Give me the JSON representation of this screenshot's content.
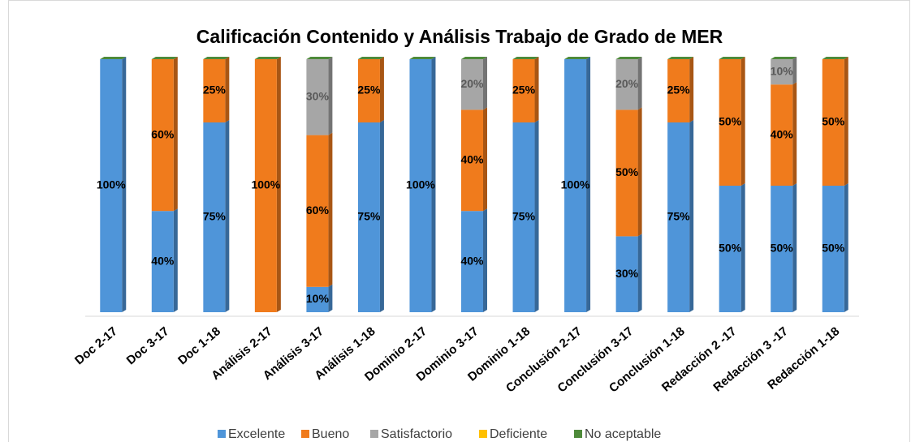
{
  "chart_data": {
    "type": "stacked-bar",
    "title": "Calificación Contenido y Análisis Trabajo de Grado de MER",
    "categories": [
      "Doc 2-17",
      "Doc 3-17",
      "Doc 1-18",
      "Análisis 2-17",
      "Análisis 3-17",
      "Análisis 1-18",
      "Dominio 2-17",
      "Dominio 3-17",
      "Dominio 1-18",
      "Conclusión 2-17",
      "Conclusión 3-17",
      "Conclusión 1-18",
      "Redacción 2 -17",
      "Redacción 3 -17",
      "Redacción 1-18"
    ],
    "series": [
      {
        "name": "Excelente",
        "color": "#4f95d9",
        "values": [
          100,
          40,
          75,
          0,
          10,
          75,
          100,
          40,
          75,
          100,
          30,
          75,
          50,
          50,
          50
        ],
        "value_labels": [
          "100%",
          "40%",
          "75%",
          null,
          "10%",
          "75%",
          "100%",
          "40%",
          "75%",
          "100%",
          "30%",
          "75%",
          "50%",
          "50%",
          "50%"
        ]
      },
      {
        "name": "Bueno",
        "color": "#f07b1c",
        "values": [
          0,
          60,
          25,
          100,
          60,
          25,
          0,
          40,
          25,
          0,
          50,
          25,
          50,
          40,
          50
        ],
        "value_labels": [
          null,
          "60%",
          "25%",
          "100%",
          "60%",
          "25%",
          null,
          "40%",
          "25%",
          null,
          "50%",
          "25%",
          "50%",
          "40%",
          "50%"
        ]
      },
      {
        "name": "Satisfactorio",
        "color": "#a6a6a6",
        "values": [
          0,
          0,
          0,
          0,
          30,
          0,
          0,
          20,
          0,
          0,
          20,
          0,
          0,
          10,
          0
        ],
        "value_labels": [
          null,
          null,
          null,
          null,
          "30%",
          null,
          null,
          "20%",
          null,
          null,
          "20%",
          null,
          null,
          "10%",
          null
        ]
      },
      {
        "name": "Deficiente",
        "color": "#ffc000",
        "values": [
          0,
          0,
          0,
          0,
          0,
          0,
          0,
          0,
          0,
          0,
          0,
          0,
          0,
          0,
          0
        ]
      },
      {
        "name": "No aceptable",
        "color": "#4e8a3a",
        "values": [
          0,
          0,
          0,
          0,
          0,
          0,
          0,
          0,
          0,
          0,
          0,
          0,
          0,
          0,
          0
        ]
      }
    ],
    "ylim": [
      0,
      100
    ],
    "legend": "bottom"
  }
}
